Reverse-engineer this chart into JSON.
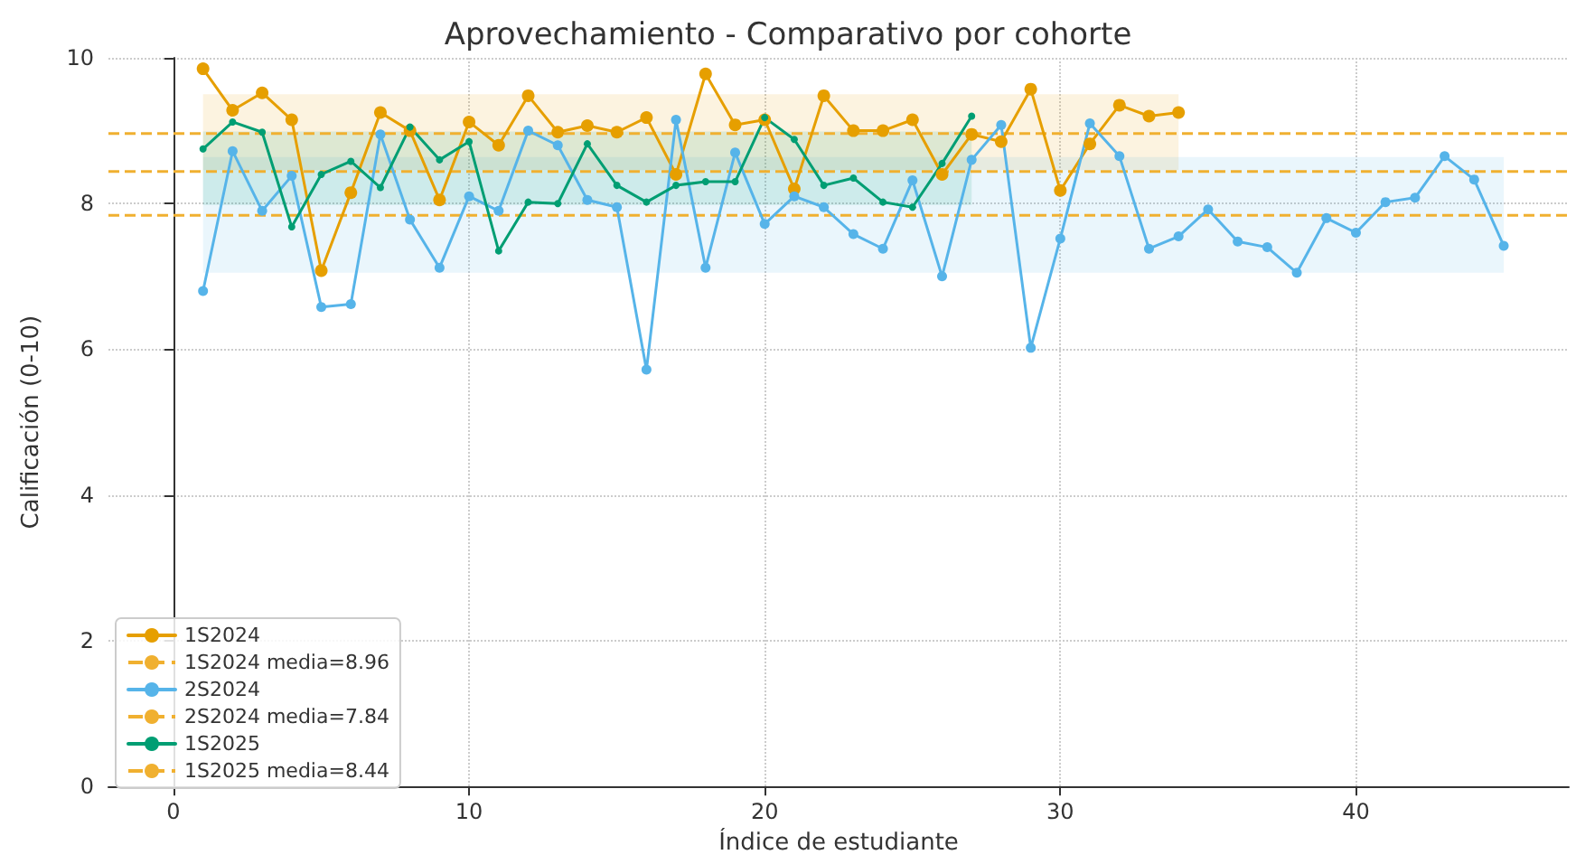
{
  "chart_data": {
    "type": "line",
    "title": "Aprovechamiento - Comparativo por cohorte",
    "xlabel": "Índice de estudiante",
    "ylabel": "Calificación (0-10)",
    "series": [
      {
        "name": "1S2024",
        "color": "#e69f00",
        "x": [
          1,
          2,
          3,
          4,
          5,
          6,
          7,
          8,
          9,
          10,
          11,
          12,
          13,
          14,
          15,
          16,
          17,
          18,
          19,
          20,
          21,
          22,
          23,
          24,
          25,
          26,
          27,
          28,
          29,
          30,
          31,
          32,
          33,
          34
        ],
        "values": [
          9.85,
          9.28,
          9.52,
          9.15,
          7.08,
          8.15,
          9.25,
          9.0,
          8.05,
          9.12,
          8.8,
          9.48,
          8.98,
          9.07,
          8.98,
          9.18,
          8.4,
          9.78,
          9.08,
          9.15,
          8.2,
          9.48,
          9.0,
          9.0,
          9.15,
          8.4,
          8.95,
          8.85,
          9.57,
          8.18,
          8.82,
          9.35,
          9.2,
          9.25
        ]
      },
      {
        "name": "2S2024",
        "color": "#56b4e9",
        "x": [
          1,
          2,
          3,
          4,
          5,
          6,
          7,
          8,
          9,
          10,
          11,
          12,
          13,
          14,
          15,
          16,
          17,
          18,
          19,
          20,
          21,
          22,
          23,
          24,
          25,
          26,
          27,
          28,
          29,
          30,
          31,
          32,
          33,
          34,
          35,
          36,
          37,
          38,
          39,
          40,
          41,
          42,
          43,
          44,
          45
        ],
        "values": [
          6.8,
          8.72,
          7.9,
          8.38,
          6.58,
          6.62,
          8.95,
          7.78,
          7.12,
          8.1,
          7.9,
          9.0,
          8.8,
          8.05,
          7.95,
          5.72,
          9.15,
          7.12,
          8.7,
          7.72,
          8.1,
          7.95,
          7.58,
          7.38,
          8.32,
          7.0,
          8.6,
          9.08,
          6.02,
          7.52,
          9.1,
          8.65,
          7.38,
          7.55,
          7.92,
          7.48,
          7.4,
          7.05,
          7.8,
          7.6,
          8.02,
          8.08,
          8.65,
          8.33,
          7.42
        ]
      },
      {
        "name": "1S2025",
        "color": "#009e73",
        "x": [
          1,
          2,
          3,
          4,
          5,
          6,
          7,
          8,
          9,
          10,
          11,
          12,
          13,
          14,
          15,
          16,
          17,
          18,
          19,
          20,
          21,
          22,
          23,
          24,
          25,
          26,
          27
        ],
        "values": [
          8.75,
          9.12,
          8.98,
          7.68,
          8.4,
          8.58,
          8.22,
          9.05,
          8.6,
          8.85,
          7.35,
          8.02,
          8.0,
          8.82,
          8.25,
          8.02,
          8.25,
          8.3,
          8.3,
          9.18,
          8.88,
          8.25,
          8.35,
          8.02,
          7.95,
          8.55,
          9.2
        ]
      }
    ],
    "ref_lines": [
      {
        "axis": "y",
        "value": 8.96,
        "label": "1S2024 media=8.96",
        "color": "#f0b030",
        "line_style": "dashed"
      },
      {
        "axis": "y",
        "value": 7.84,
        "label": "2S2024 media=7.84",
        "color": "#f0b030",
        "line_style": "dashed"
      },
      {
        "axis": "y",
        "value": 8.44,
        "label": "1S2025 media=8.44",
        "color": "#f0b030",
        "line_style": "dashed"
      }
    ],
    "bands": [
      {
        "axis": "y",
        "from": 8.46,
        "to": 9.5,
        "color": "#e69f00"
      },
      {
        "axis": "y",
        "from": 7.05,
        "to": 8.64,
        "color": "#56b4e9"
      },
      {
        "axis": "y",
        "from": 7.98,
        "to": 8.99,
        "color": "#009e73"
      }
    ],
    "xlim": [
      -2.2,
      47.2
    ],
    "xticks": [
      0,
      10,
      20,
      30,
      40
    ],
    "ylim": [
      0,
      10
    ],
    "yticks": [
      0,
      2,
      4,
      6,
      8,
      10
    ],
    "grid": true,
    "legend": "bottom left",
    "marker": "circle",
    "line_style": "solid"
  }
}
